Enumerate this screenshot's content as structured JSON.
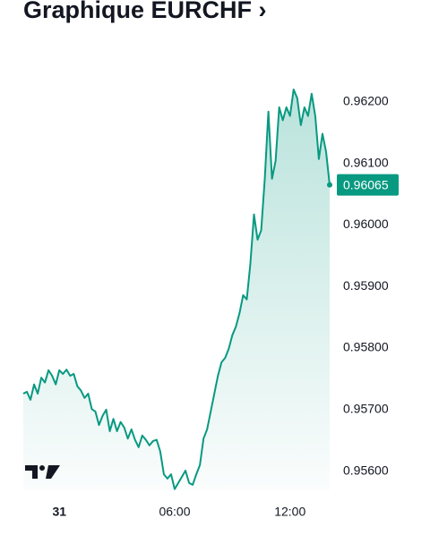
{
  "chart_data": {
    "type": "line",
    "title": "Graphique EURCHF ›",
    "x": [
      -1.875,
      -1.6875,
      -1.5,
      -1.3125,
      -1.125,
      -0.9375,
      -0.75,
      -0.5625,
      -0.375,
      -0.1875,
      0,
      0.1875,
      0.375,
      0.5625,
      0.75,
      0.9375,
      1.125,
      1.3125,
      1.5,
      1.6875,
      1.875,
      2.0625,
      2.25,
      2.4375,
      2.625,
      2.8125,
      3,
      3.1875,
      3.375,
      3.5625,
      3.75,
      3.9375,
      4.125,
      4.3125,
      4.5,
      4.6875,
      4.875,
      5.0625,
      5.25,
      5.4375,
      5.625,
      5.8125,
      6,
      6.1875,
      6.375,
      6.5625,
      6.75,
      6.9375,
      7.125,
      7.3125,
      7.5,
      7.6875,
      7.875,
      8.0625,
      8.25,
      8.4375,
      8.625,
      8.8125,
      9,
      9.1875,
      9.375,
      9.5625,
      9.75,
      9.9375,
      10.125,
      10.3125,
      10.5,
      10.6875,
      10.875,
      11.0625,
      11.25,
      11.4375,
      11.625,
      11.8125,
      12,
      12.1875,
      12.375,
      12.5625,
      12.75,
      12.9375,
      13.125,
      13.3125,
      13.5,
      13.6875,
      13.875,
      14.0625
    ],
    "series": [
      {
        "name": "EURCHF",
        "color": "#089981",
        "values": [
          0.95726,
          0.95729,
          0.95716,
          0.95741,
          0.95726,
          0.95752,
          0.95744,
          0.95764,
          0.95755,
          0.95741,
          0.95764,
          0.95758,
          0.95765,
          0.95755,
          0.95758,
          0.95738,
          0.95731,
          0.95719,
          0.95726,
          0.95701,
          0.95697,
          0.95675,
          0.9569,
          0.957,
          0.95665,
          0.95685,
          0.95665,
          0.9568,
          0.95671,
          0.95653,
          0.95668,
          0.95651,
          0.95639,
          0.95658,
          0.95651,
          0.95642,
          0.95649,
          0.95651,
          0.95632,
          0.95595,
          0.95588,
          0.95595,
          0.95571,
          0.95581,
          0.95591,
          0.95601,
          0.95581,
          0.95578,
          0.95595,
          0.9561,
          0.95653,
          0.95668,
          0.95697,
          0.95726,
          0.95755,
          0.95777,
          0.95784,
          0.95799,
          0.95821,
          0.95835,
          0.95857,
          0.95886,
          0.95879,
          0.95937,
          0.96017,
          0.95976,
          0.95991,
          0.96075,
          0.96184,
          0.96075,
          0.96104,
          0.96191,
          0.9617,
          0.96191,
          0.96177,
          0.9622,
          0.96206,
          0.96162,
          0.96191,
          0.96177,
          0.96213,
          0.96177,
          0.96107,
          0.96148,
          0.96119,
          0.96065
        ]
      }
    ],
    "xlim": [
      -1.875,
      14.0625
    ],
    "xticks": [
      {
        "value": 0,
        "label": "31"
      },
      {
        "value": 6,
        "label": "06:00"
      },
      {
        "value": 12,
        "label": "12:00"
      }
    ],
    "ylim": [
      0.95569,
      0.96249
    ],
    "yticks": [
      {
        "value": 0.956,
        "label": "0.95600"
      },
      {
        "value": 0.957,
        "label": "0.95700"
      },
      {
        "value": 0.958,
        "label": "0.95800"
      },
      {
        "value": 0.959,
        "label": "0.95900"
      },
      {
        "value": 0.96,
        "label": "0.96000"
      },
      {
        "value": 0.961,
        "label": "0.96100"
      },
      {
        "value": 0.962,
        "label": "0.96200"
      }
    ],
    "last_price": {
      "value": 0.96065,
      "label": "0.96065"
    },
    "area_fill": true
  }
}
